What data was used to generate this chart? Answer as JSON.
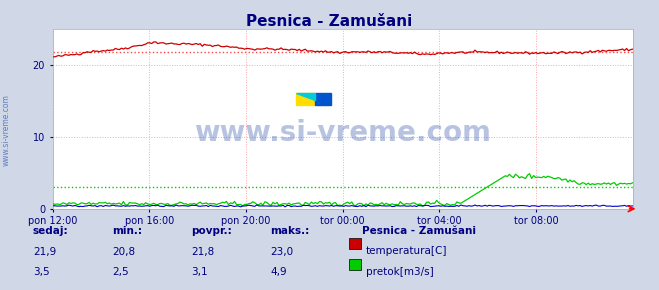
{
  "title": "Pesnica - Zamušani",
  "background_color": "#d0d8e8",
  "plot_bg_color": "#ffffff",
  "grid_color": "#ff9999",
  "grid_linestyle": "dotted",
  "x_labels": [
    "pon 12:00",
    "pon 16:00",
    "pon 20:00",
    "tor 00:00",
    "tor 04:00",
    "tor 08:00"
  ],
  "x_ticks_count": 6,
  "y_min": 0,
  "y_max": 25,
  "y_ticks": [
    0,
    10,
    20
  ],
  "temp_color": "#cc0000",
  "temp_avg_color": "#ff4444",
  "flow_color": "#00cc00",
  "flow_avg_color": "#00cc00",
  "height_color": "#0000cc",
  "watermark_text": "www.si-vreme.com",
  "watermark_color": "#3355aa",
  "watermark_alpha": 0.35,
  "sidebar_text": "www.si-vreme.com",
  "sidebar_color": "#3355aa",
  "temp_min": 20.8,
  "temp_max": 23.0,
  "temp_avg": 21.8,
  "temp_cur": 21.9,
  "flow_min": 2.5,
  "flow_max": 4.9,
  "flow_avg": 3.1,
  "flow_cur": 3.5,
  "legend_title": "Pesnica - Zamušani",
  "legend_items": [
    {
      "label": "temperatura[C]",
      "color": "#cc0000"
    },
    {
      "label": "pretok[m3/s]",
      "color": "#00cc00"
    }
  ],
  "table_headers": [
    "sedaj:",
    "min.:",
    "povpr.:",
    "maks.:"
  ],
  "table_rows": [
    [
      "21,9",
      "20,8",
      "21,8",
      "23,0"
    ],
    [
      "3,5",
      "2,5",
      "3,1",
      "4,9"
    ]
  ],
  "n_points": 288
}
